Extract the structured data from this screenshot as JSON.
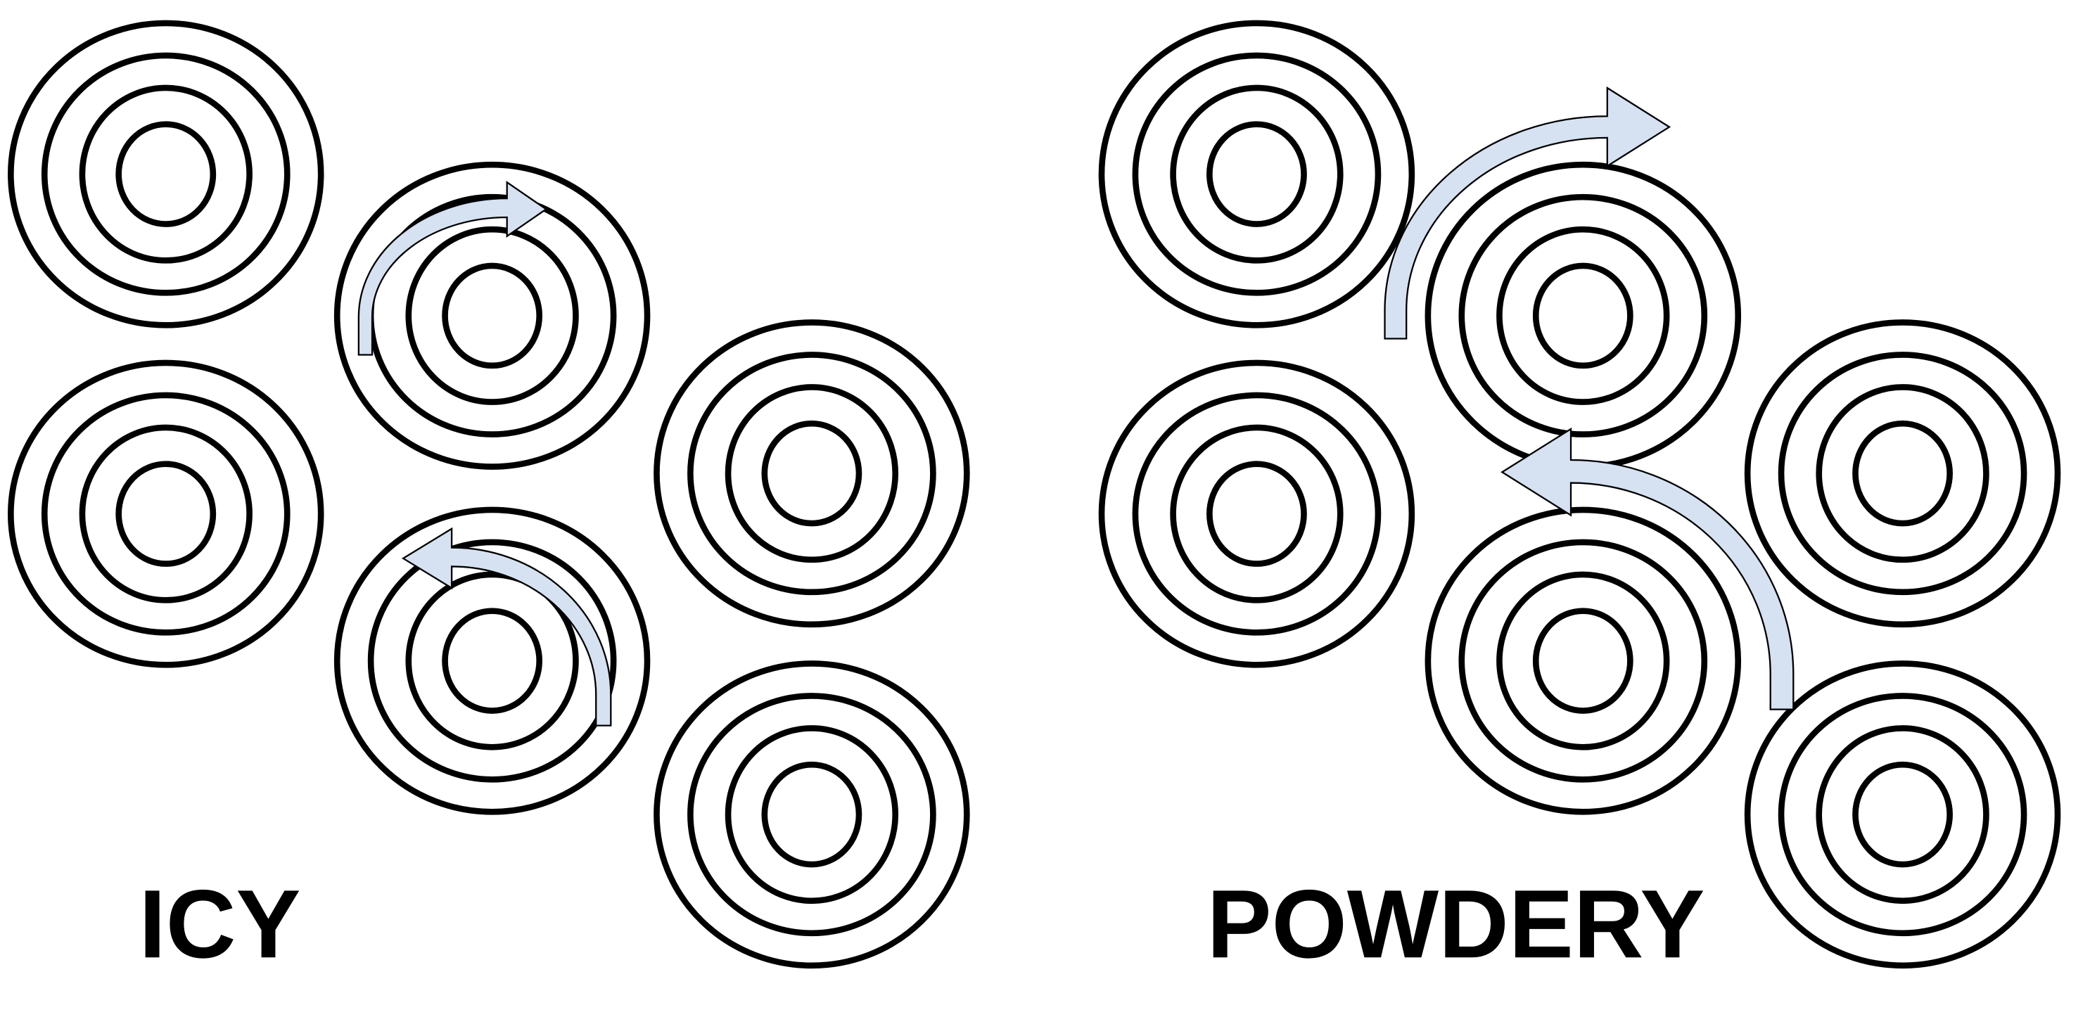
{
  "panels": [
    {
      "label": "ICY"
    },
    {
      "label": "POWDERY"
    }
  ]
}
